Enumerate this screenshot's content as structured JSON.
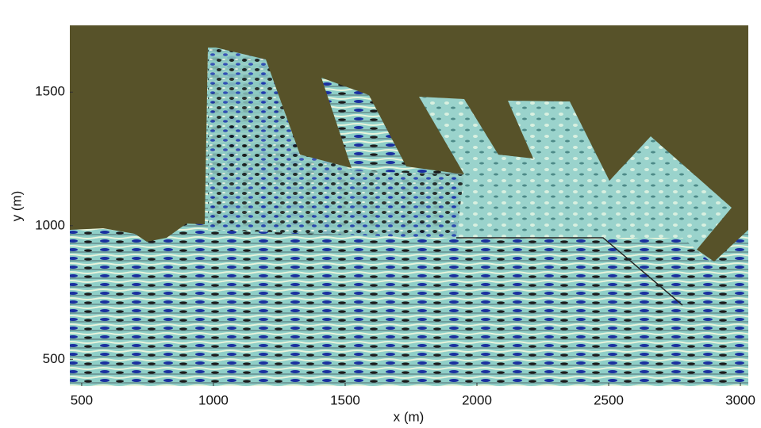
{
  "chart_data": {
    "type": "image",
    "xlabel": "x (m)",
    "ylabel": "y (m)",
    "xlim": [
      455,
      3030
    ],
    "ylim": [
      400,
      1750
    ],
    "xticks": [
      500,
      1000,
      1500,
      2000,
      2500,
      3000
    ],
    "yticks": [
      500,
      1000,
      1500
    ]
  }
}
